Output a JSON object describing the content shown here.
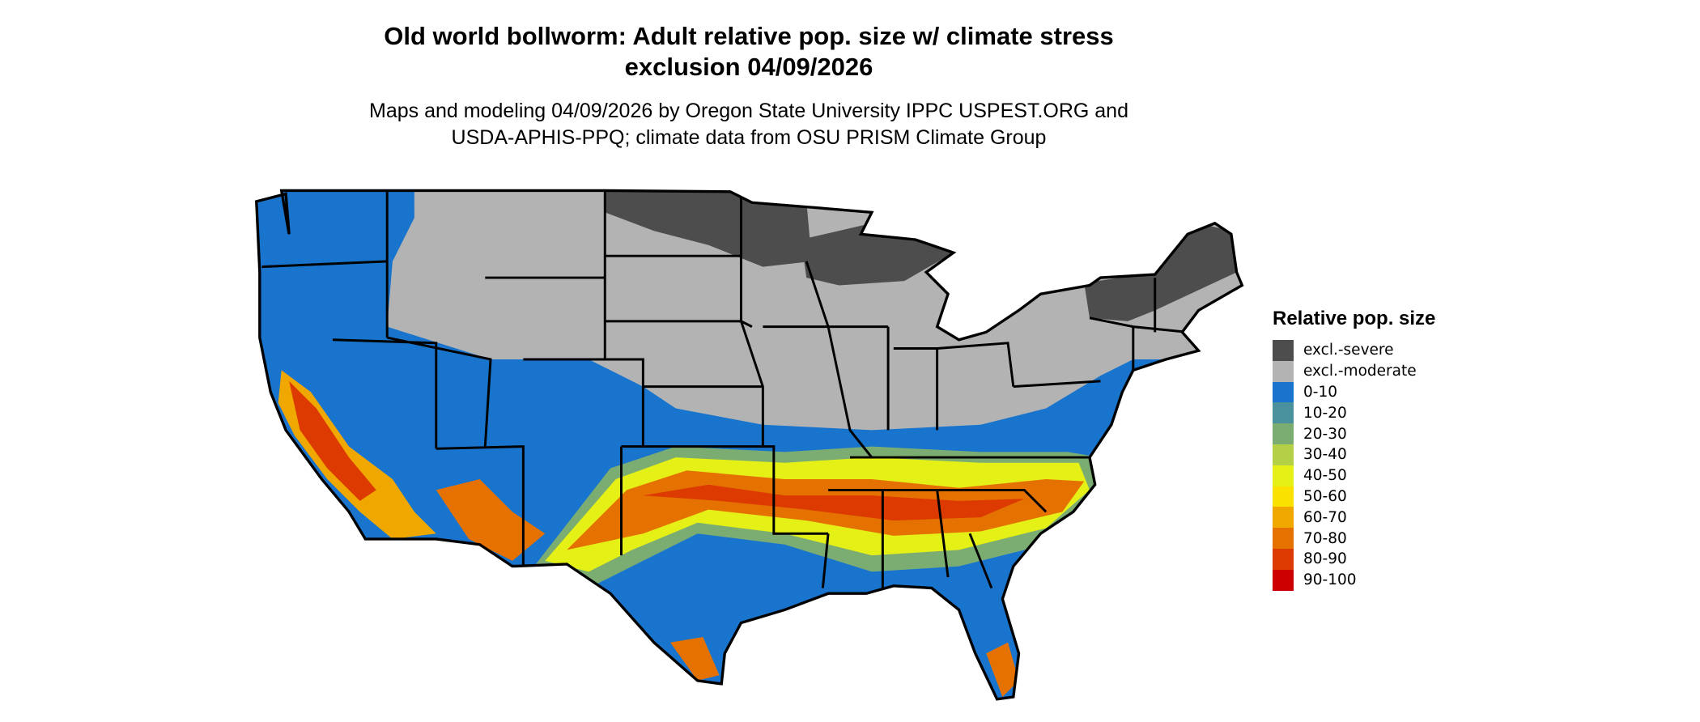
{
  "title_line1": "Old world bollworm: Adult relative pop. size w/ climate stress",
  "title_line2": "exclusion 04/09/2026",
  "subtitle_line1": "Maps and modeling 04/09/2026 by Oregon State University IPPC USPEST.ORG and",
  "subtitle_line2": "USDA-APHIS-PPQ; climate data from OSU PRISM Climate Group",
  "legend": {
    "title": "Relative pop. size",
    "items": [
      {
        "label": "excl.-severe",
        "color": "#4d4d4d"
      },
      {
        "label": "excl.-moderate",
        "color": "#b3b3b3"
      },
      {
        "label": "0-10",
        "color": "#1874cd"
      },
      {
        "label": "10-20",
        "color": "#4a919e"
      },
      {
        "label": "20-30",
        "color": "#7bad72"
      },
      {
        "label": "30-40",
        "color": "#b3d046"
      },
      {
        "label": "40-50",
        "color": "#e5f016"
      },
      {
        "label": "50-60",
        "color": "#fbe100"
      },
      {
        "label": "60-70",
        "color": "#f0a800"
      },
      {
        "label": "70-80",
        "color": "#e57200"
      },
      {
        "label": "80-90",
        "color": "#dc3a00"
      },
      {
        "label": "90-100",
        "color": "#cc0000"
      }
    ]
  },
  "map": {
    "region": "contiguous United States",
    "state_border_color": "#000000"
  }
}
